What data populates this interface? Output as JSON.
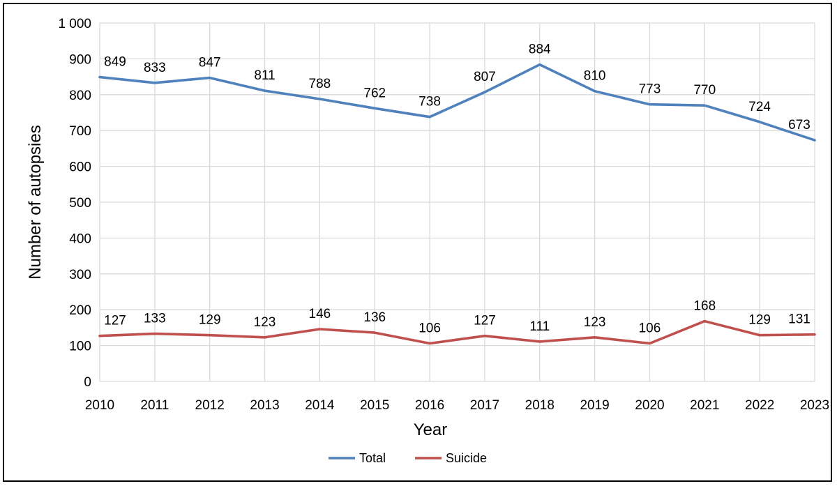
{
  "chart_data": {
    "type": "line",
    "title": "",
    "xlabel": "Year",
    "ylabel": "Number of autopsies",
    "categories": [
      "2010",
      "2011",
      "2012",
      "2013",
      "2014",
      "2015",
      "2016",
      "2017",
      "2018",
      "2019",
      "2020",
      "2021",
      "2022",
      "2023"
    ],
    "ylim": [
      0,
      1000
    ],
    "yticks": [
      0,
      100,
      200,
      300,
      400,
      500,
      600,
      700,
      800,
      900,
      1000
    ],
    "ytick_labels": [
      "0",
      "100",
      "200",
      "300",
      "400",
      "500",
      "600",
      "700",
      "800",
      "900",
      "1 000"
    ],
    "grid": true,
    "legend_position": "bottom",
    "series": [
      {
        "name": "Total",
        "color": "#4F81BD",
        "values": [
          849,
          833,
          847,
          811,
          788,
          762,
          738,
          807,
          884,
          810,
          773,
          770,
          724,
          673
        ]
      },
      {
        "name": "Suicide",
        "color": "#C0504D",
        "values": [
          127,
          133,
          129,
          123,
          146,
          136,
          106,
          127,
          111,
          123,
          106,
          168,
          129,
          131
        ]
      }
    ]
  }
}
